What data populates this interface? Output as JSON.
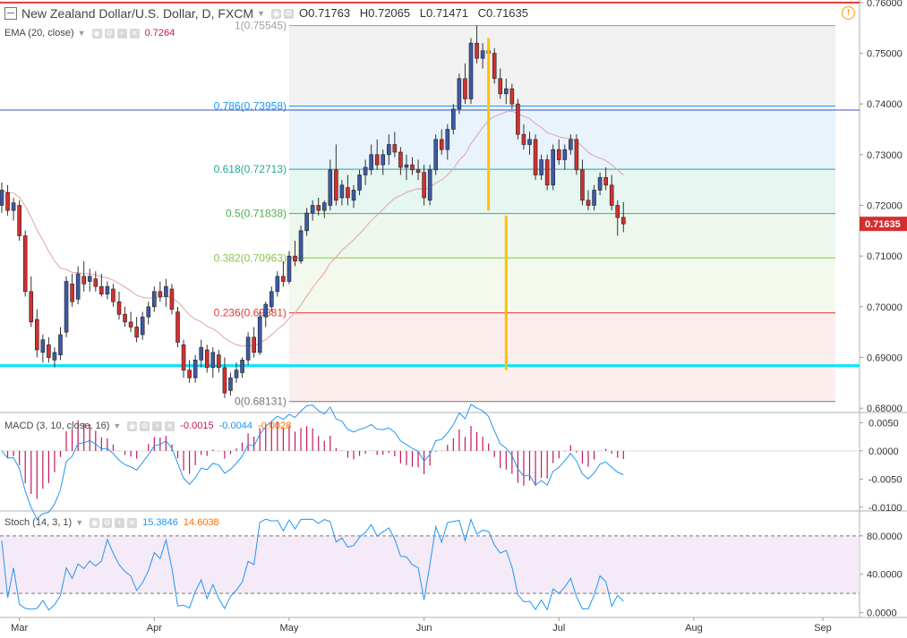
{
  "header": {
    "symbol_title": "New Zealand Dollar/U.S. Dollar, D, FXCM",
    "open": "O0.71763",
    "high": "H0.72065",
    "low": "L0.71471",
    "close": "C0.71635"
  },
  "indicators": {
    "ema": {
      "title": "EMA (20, close)",
      "value": "0.7264",
      "color": "#c2185b"
    },
    "macd": {
      "title": "MACD (3, 10, close, 16)",
      "hist": "-0.0015",
      "macd": "-0.0044",
      "signal": "-0.0028",
      "hist_color": "#c2185b",
      "macd_color": "#2196f3",
      "signal_color": "#ff6d00"
    },
    "stoch": {
      "title": "Stoch (14, 3, 1)",
      "k": "15.3846",
      "d": "14.6038",
      "k_color": "#2196f3",
      "d_color": "#ff6d00"
    }
  },
  "colors": {
    "up": "#3d5aa8",
    "down": "#d32f2f",
    "ema_line": "#e0a3a8",
    "cyan_line": "#00e5ff",
    "gold_line": "#ffc107",
    "red_top": "#e53935",
    "navy_line": "#3f51b5"
  },
  "fibonacci": [
    {
      "label": "1(0.75545)",
      "price": 0.75545,
      "color": "#9e9e9e"
    },
    {
      "label": "0.786(0.73958)",
      "price": 0.73958,
      "color": "#2196f3"
    },
    {
      "label": "0.618(0.72713)",
      "price": 0.72713,
      "color": "#26a69a"
    },
    {
      "label": "0.5(0.71838)",
      "price": 0.71838,
      "color": "#4caf50"
    },
    {
      "label": "0.382(0.70963)",
      "price": 0.70963,
      "color": "#8bc34a"
    },
    {
      "label": "0.236(0.69881)",
      "price": 0.69881,
      "color": "#e53935"
    },
    {
      "label": "0(0.68131)",
      "price": 0.68131,
      "color": "#757575"
    }
  ],
  "price_axis": {
    "ticks": [
      "0.76000",
      "0.75000",
      "0.74000",
      "0.73000",
      "0.72000",
      "0.71000",
      "0.70000",
      "0.69000",
      "0.68000"
    ],
    "last_price": "0.71635"
  },
  "macd_axis": {
    "ticks": [
      "0.0050",
      "0.0000",
      "-0.0050",
      "-0.0100"
    ]
  },
  "stoch_axis": {
    "ticks": [
      "80.0000",
      "40.0000",
      "0.0000"
    ]
  },
  "time_axis": {
    "labels": [
      "Mar",
      "Apr",
      "May",
      "Jun",
      "Jul",
      "Aug",
      "Sep"
    ]
  },
  "chart_data": {
    "type": "candlestick",
    "series": [
      {
        "name": "NZDUSD",
        "ohlc": [
          [
            0.72,
            0.7245,
            0.7185,
            0.723
          ],
          [
            0.7225,
            0.724,
            0.718,
            0.719
          ],
          [
            0.719,
            0.7215,
            0.717,
            0.7205
          ],
          [
            0.72,
            0.721,
            0.713,
            0.714
          ],
          [
            0.714,
            0.715,
            0.702,
            0.703
          ],
          [
            0.703,
            0.706,
            0.696,
            0.697
          ],
          [
            0.6975,
            0.6995,
            0.69,
            0.6915
          ],
          [
            0.691,
            0.6945,
            0.689,
            0.6935
          ],
          [
            0.6925,
            0.694,
            0.689,
            0.69
          ],
          [
            0.6895,
            0.692,
            0.688,
            0.691
          ],
          [
            0.6905,
            0.696,
            0.6895,
            0.6945
          ],
          [
            0.695,
            0.706,
            0.694,
            0.705
          ],
          [
            0.7045,
            0.7065,
            0.7,
            0.701
          ],
          [
            0.7015,
            0.708,
            0.7005,
            0.7065
          ],
          [
            0.706,
            0.709,
            0.703,
            0.7045
          ],
          [
            0.705,
            0.7075,
            0.703,
            0.706
          ],
          [
            0.7055,
            0.707,
            0.703,
            0.704
          ],
          [
            0.704,
            0.7065,
            0.702,
            0.7025
          ],
          [
            0.7025,
            0.705,
            0.7015,
            0.704
          ],
          [
            0.7035,
            0.7045,
            0.7,
            0.701
          ],
          [
            0.701,
            0.703,
            0.6975,
            0.6985
          ],
          [
            0.6985,
            0.7,
            0.696,
            0.697
          ],
          [
            0.697,
            0.699,
            0.695,
            0.696
          ],
          [
            0.696,
            0.698,
            0.693,
            0.694
          ],
          [
            0.6945,
            0.699,
            0.6935,
            0.698
          ],
          [
            0.698,
            0.701,
            0.6965,
            0.7
          ],
          [
            0.7,
            0.704,
            0.699,
            0.703
          ],
          [
            0.703,
            0.705,
            0.701,
            0.702
          ],
          [
            0.702,
            0.7055,
            0.7,
            0.704
          ],
          [
            0.7035,
            0.7045,
            0.6985,
            0.6995
          ],
          [
            0.699,
            0.7,
            0.692,
            0.693
          ],
          [
            0.6925,
            0.6935,
            0.686,
            0.6875
          ],
          [
            0.6875,
            0.6895,
            0.685,
            0.686
          ],
          [
            0.686,
            0.6905,
            0.685,
            0.6895
          ],
          [
            0.6895,
            0.6935,
            0.688,
            0.692
          ],
          [
            0.6915,
            0.6925,
            0.687,
            0.688
          ],
          [
            0.688,
            0.692,
            0.686,
            0.691
          ],
          [
            0.6905,
            0.6915,
            0.687,
            0.688
          ],
          [
            0.688,
            0.69,
            0.682,
            0.683
          ],
          [
            0.6835,
            0.687,
            0.6825,
            0.686
          ],
          [
            0.686,
            0.689,
            0.685,
            0.6875
          ],
          [
            0.687,
            0.69,
            0.686,
            0.6895
          ],
          [
            0.6895,
            0.695,
            0.6885,
            0.694
          ],
          [
            0.694,
            0.696,
            0.69,
            0.691
          ],
          [
            0.691,
            0.699,
            0.6905,
            0.698
          ],
          [
            0.698,
            0.701,
            0.696,
            0.7005
          ],
          [
            0.7,
            0.704,
            0.699,
            0.703
          ],
          [
            0.703,
            0.707,
            0.702,
            0.706
          ],
          [
            0.706,
            0.709,
            0.704,
            0.705
          ],
          [
            0.705,
            0.711,
            0.7045,
            0.71
          ],
          [
            0.71,
            0.713,
            0.708,
            0.709
          ],
          [
            0.709,
            0.716,
            0.7085,
            0.715
          ],
          [
            0.715,
            0.7195,
            0.714,
            0.7185
          ],
          [
            0.7185,
            0.721,
            0.717,
            0.72
          ],
          [
            0.72,
            0.7215,
            0.718,
            0.719
          ],
          [
            0.719,
            0.721,
            0.7175,
            0.7205
          ],
          [
            0.72,
            0.729,
            0.719,
            0.727
          ],
          [
            0.727,
            0.732,
            0.72,
            0.721
          ],
          [
            0.7215,
            0.725,
            0.72,
            0.724
          ],
          [
            0.7235,
            0.726,
            0.72,
            0.7215
          ],
          [
            0.721,
            0.724,
            0.7195,
            0.723
          ],
          [
            0.723,
            0.727,
            0.722,
            0.726
          ],
          [
            0.726,
            0.729,
            0.724,
            0.7275
          ],
          [
            0.727,
            0.732,
            0.726,
            0.73
          ],
          [
            0.73,
            0.733,
            0.727,
            0.728
          ],
          [
            0.728,
            0.731,
            0.726,
            0.73
          ],
          [
            0.73,
            0.734,
            0.728,
            0.732
          ],
          [
            0.732,
            0.7345,
            0.7295,
            0.7305
          ],
          [
            0.7305,
            0.7315,
            0.726,
            0.7275
          ],
          [
            0.7275,
            0.73,
            0.725,
            0.728
          ],
          [
            0.728,
            0.7295,
            0.726,
            0.727
          ],
          [
            0.727,
            0.729,
            0.725,
            0.7265
          ],
          [
            0.7265,
            0.728,
            0.72,
            0.7215
          ],
          [
            0.721,
            0.728,
            0.72,
            0.727
          ],
          [
            0.727,
            0.734,
            0.726,
            0.733
          ],
          [
            0.733,
            0.735,
            0.73,
            0.731
          ],
          [
            0.731,
            0.736,
            0.729,
            0.735
          ],
          [
            0.735,
            0.74,
            0.734,
            0.739
          ],
          [
            0.739,
            0.746,
            0.738,
            0.745
          ],
          [
            0.745,
            0.748,
            0.74,
            0.741
          ],
          [
            0.741,
            0.753,
            0.74,
            0.752
          ],
          [
            0.752,
            0.7555,
            0.748,
            0.749
          ],
          [
            0.749,
            0.752,
            0.747,
            0.7505
          ],
          [
            0.7505,
            0.753,
            0.749,
            0.75
          ],
          [
            0.75,
            0.751,
            0.744,
            0.745
          ],
          [
            0.745,
            0.747,
            0.741,
            0.742
          ],
          [
            0.742,
            0.745,
            0.74,
            0.743
          ],
          [
            0.743,
            0.744,
            0.739,
            0.74
          ],
          [
            0.74,
            0.741,
            0.733,
            0.734
          ],
          [
            0.734,
            0.736,
            0.731,
            0.732
          ],
          [
            0.732,
            0.7345,
            0.73,
            0.733
          ],
          [
            0.733,
            0.734,
            0.725,
            0.726
          ],
          [
            0.726,
            0.73,
            0.725,
            0.729
          ],
          [
            0.729,
            0.73,
            0.723,
            0.724
          ],
          [
            0.724,
            0.732,
            0.723,
            0.731
          ],
          [
            0.731,
            0.733,
            0.728,
            0.729
          ],
          [
            0.729,
            0.732,
            0.727,
            0.731
          ],
          [
            0.731,
            0.734,
            0.73,
            0.733
          ],
          [
            0.733,
            0.734,
            0.726,
            0.727
          ],
          [
            0.727,
            0.729,
            0.72,
            0.721
          ],
          [
            0.721,
            0.723,
            0.719,
            0.72
          ],
          [
            0.72,
            0.724,
            0.719,
            0.723
          ],
          [
            0.723,
            0.7265,
            0.722,
            0.7255
          ],
          [
            0.7255,
            0.7275,
            0.723,
            0.724
          ],
          [
            0.724,
            0.726,
            0.719,
            0.72
          ],
          [
            0.72,
            0.721,
            0.714,
            0.7176
          ],
          [
            0.71763,
            0.72065,
            0.71471,
            0.71635
          ]
        ]
      }
    ],
    "ema20_last": 0.7264,
    "price_range": [
      0.6795,
      0.7605
    ],
    "macd_range": [
      -0.0105,
      0.0065
    ],
    "stoch_range": [
      -5,
      105
    ],
    "stoch_bands": [
      80,
      20
    ],
    "horizontal_lines": [
      {
        "price": 0.76,
        "color": "#e53935"
      },
      {
        "price": 0.7388,
        "color": "#3f51b5"
      },
      {
        "price": 0.6884,
        "color": "#00e5ff"
      }
    ],
    "vertical_markers": [
      {
        "bar": 83,
        "from": 0.753,
        "to": 0.719
      },
      {
        "bar": 86,
        "from": 0.718,
        "to": 0.6875
      }
    ],
    "month_bars": {
      "Mar": 3,
      "Apr": 26,
      "May": 49,
      "Jun": 72,
      "Jul": 95,
      "Aug": 118,
      "Sep": 140
    }
  }
}
